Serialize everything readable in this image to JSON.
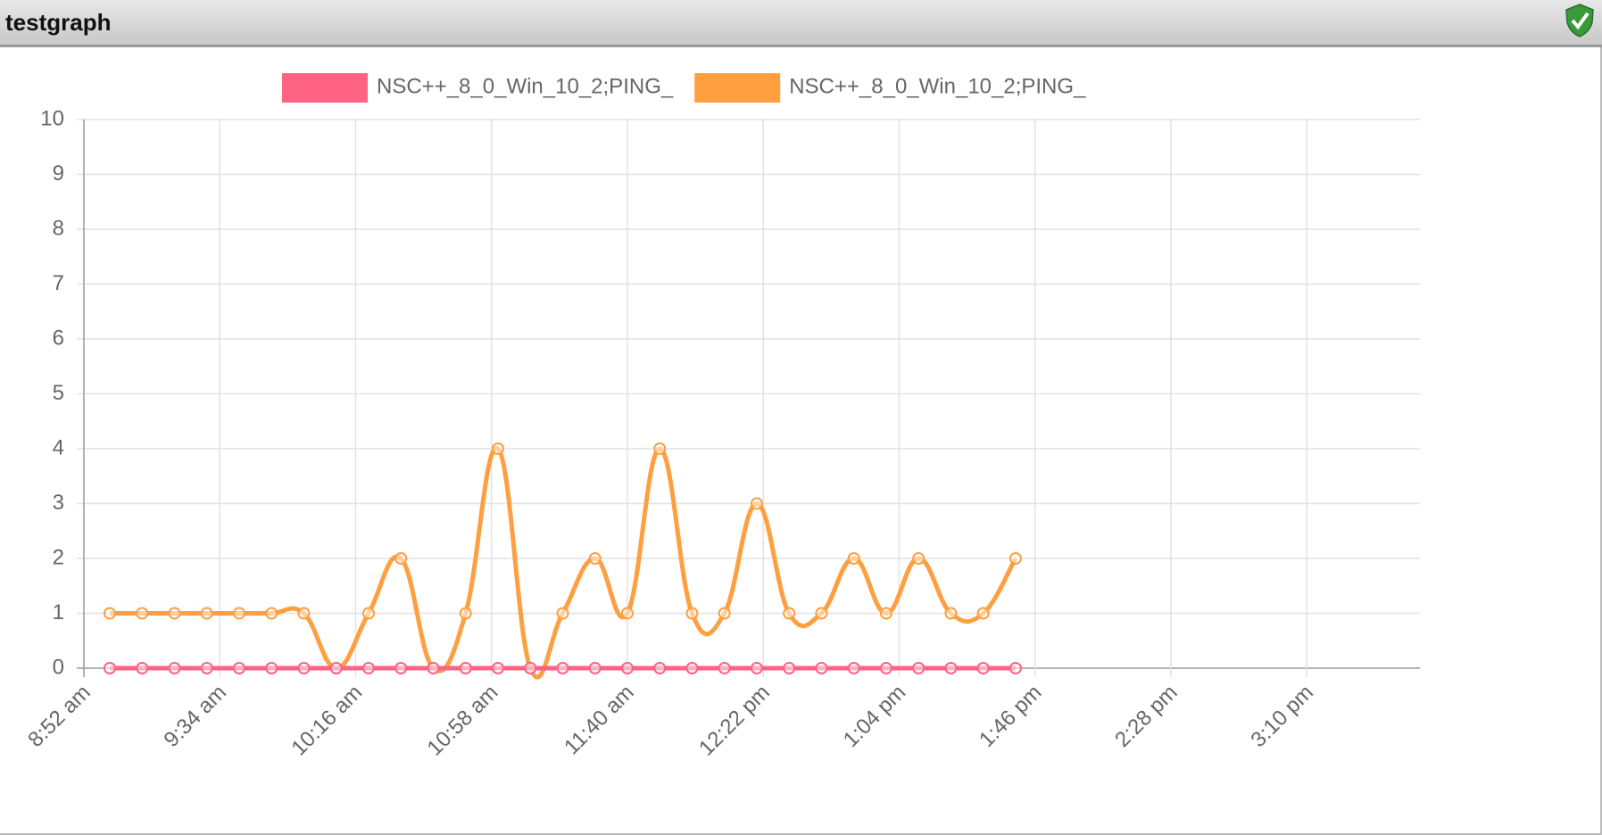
{
  "header": {
    "title": "testgraph"
  },
  "chart_data": {
    "type": "line",
    "x": [
      540,
      550,
      560,
      570,
      580,
      590,
      600,
      610,
      620,
      630,
      640,
      650,
      660,
      670,
      680,
      690,
      700,
      710,
      720,
      730,
      740,
      750,
      760,
      770,
      780,
      790,
      800,
      810,
      820
    ],
    "series": [
      {
        "name": "NSC++_8_0_Win_10_2;PING_",
        "color": "#ff6384",
        "values": [
          0,
          0,
          0,
          0,
          0,
          0,
          0,
          0,
          0,
          0,
          0,
          0,
          0,
          0,
          0,
          0,
          0,
          0,
          0,
          0,
          0,
          0,
          0,
          0,
          0,
          0,
          0,
          0,
          0
        ]
      },
      {
        "name": "NSC++_8_0_Win_10_2;PING_",
        "color": "#ff9f40",
        "values": [
          1,
          1,
          1,
          1,
          1,
          1,
          1,
          0,
          1,
          2,
          0,
          1,
          4,
          0,
          1,
          2,
          1,
          4,
          1,
          1,
          3,
          1,
          1,
          2,
          1,
          2,
          1,
          1,
          2
        ]
      }
    ],
    "xlim": [
      532,
      945
    ],
    "xticks": [
      {
        "value": 532,
        "label": "8:52 am"
      },
      {
        "value": 574,
        "label": "9:34 am"
      },
      {
        "value": 616,
        "label": "10:16 am"
      },
      {
        "value": 658,
        "label": "10:58 am"
      },
      {
        "value": 700,
        "label": "11:40 am"
      },
      {
        "value": 742,
        "label": "12:22 pm"
      },
      {
        "value": 784,
        "label": "1:04 pm"
      },
      {
        "value": 826,
        "label": "1:46 pm"
      },
      {
        "value": 868,
        "label": "2:28 pm"
      },
      {
        "value": 910,
        "label": "3:10 pm"
      }
    ],
    "ylim": [
      0,
      10
    ],
    "yticks": [
      0,
      1,
      2,
      3,
      4,
      5,
      6,
      7,
      8,
      9,
      10
    ],
    "grid": true,
    "legend": "top"
  }
}
